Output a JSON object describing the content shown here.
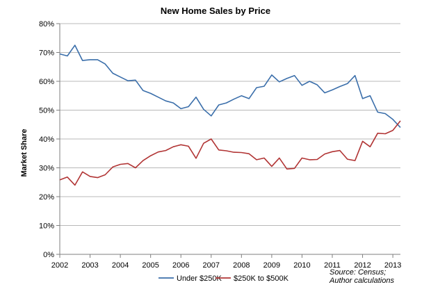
{
  "chart_data": {
    "type": "line",
    "title": "New Home Sales by Price",
    "xlabel": "",
    "ylabel": "Market Share",
    "ylim": [
      0,
      80
    ],
    "xlim": [
      2002,
      2013.25
    ],
    "y_ticks": [
      "0%",
      "10%",
      "20%",
      "30%",
      "40%",
      "50%",
      "60%",
      "70%",
      "80%"
    ],
    "x_ticks": [
      "2002",
      "2003",
      "2004",
      "2005",
      "2006",
      "2007",
      "2008",
      "2009",
      "2010",
      "2011",
      "2012",
      "2013"
    ],
    "grid": true,
    "legend_position": "bottom",
    "source_note": [
      "Source: Census;",
      "Author calculations"
    ],
    "series": [
      {
        "name": "Under $250K",
        "color": "#3a6eaa",
        "x": [
          2002.0,
          2002.25,
          2002.5,
          2002.75,
          2003.0,
          2003.25,
          2003.5,
          2003.75,
          2004.0,
          2004.25,
          2004.5,
          2004.75,
          2005.0,
          2005.25,
          2005.5,
          2005.75,
          2006.0,
          2006.25,
          2006.5,
          2006.75,
          2007.0,
          2007.25,
          2007.5,
          2007.75,
          2008.0,
          2008.25,
          2008.5,
          2008.75,
          2009.0,
          2009.25,
          2009.5,
          2009.75,
          2010.0,
          2010.25,
          2010.5,
          2010.75,
          2011.0,
          2011.25,
          2011.5,
          2011.75,
          2012.0,
          2012.25,
          2012.5,
          2012.75,
          2013.0,
          2013.25
        ],
        "values": [
          69.5,
          68.8,
          72.5,
          67.2,
          67.5,
          67.5,
          66.0,
          62.8,
          61.5,
          60.2,
          60.4,
          56.8,
          55.8,
          54.5,
          53.2,
          52.5,
          50.5,
          51.2,
          54.5,
          50.3,
          48.0,
          51.8,
          52.5,
          53.8,
          55.0,
          54.0,
          57.8,
          58.3,
          62.2,
          59.8,
          61.0,
          62.0,
          58.6,
          60.0,
          58.8,
          56.0,
          57.0,
          58.2,
          59.2,
          62.0,
          54.0,
          55.0,
          49.3,
          48.8,
          46.8,
          44.0
        ]
      },
      {
        "name": "$250K to $500K",
        "color": "#b13434",
        "x": [
          2002.0,
          2002.25,
          2002.5,
          2002.75,
          2003.0,
          2003.25,
          2003.5,
          2003.75,
          2004.0,
          2004.25,
          2004.5,
          2004.75,
          2005.0,
          2005.25,
          2005.5,
          2005.75,
          2006.0,
          2006.25,
          2006.5,
          2006.75,
          2007.0,
          2007.25,
          2007.5,
          2007.75,
          2008.0,
          2008.25,
          2008.5,
          2008.75,
          2009.0,
          2009.25,
          2009.5,
          2009.75,
          2010.0,
          2010.25,
          2010.5,
          2010.75,
          2011.0,
          2011.25,
          2011.5,
          2011.75,
          2012.0,
          2012.25,
          2012.5,
          2012.75,
          2013.0,
          2013.25
        ],
        "values": [
          25.8,
          26.8,
          24.0,
          28.6,
          27.0,
          26.6,
          27.6,
          30.3,
          31.2,
          31.5,
          30.0,
          32.5,
          34.2,
          35.5,
          36.0,
          37.3,
          38.0,
          37.5,
          33.3,
          38.5,
          40.0,
          36.2,
          35.9,
          35.4,
          35.3,
          34.9,
          32.8,
          33.4,
          30.5,
          33.4,
          29.6,
          29.8,
          33.4,
          32.8,
          32.9,
          34.8,
          35.6,
          36.0,
          33.0,
          32.5,
          39.2,
          37.3,
          42.0,
          41.8,
          43.0,
          46.3
        ]
      }
    ]
  }
}
